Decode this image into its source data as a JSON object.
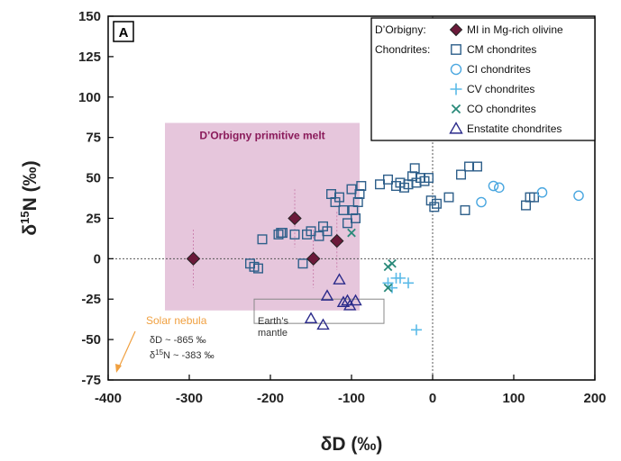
{
  "chart_data": {
    "type": "scatter",
    "panel_label": "A",
    "xlabel_parts": [
      "δD (‰)"
    ],
    "ylabel_parts": [
      "δ",
      "15",
      "N (‰)"
    ],
    "xlim": [
      -400,
      200
    ],
    "ylim": [
      -75,
      150
    ],
    "xticks": [
      -400,
      -300,
      -200,
      -100,
      0,
      100,
      200
    ],
    "yticks": [
      -75,
      -50,
      -25,
      0,
      25,
      50,
      75,
      100,
      125,
      150
    ],
    "grid": false,
    "legend": {
      "position": "top-right",
      "group_labels": [
        "D’Orbigny:",
        "Chondrites:"
      ]
    },
    "annotations": {
      "primitive_melt_label": "D’Orbigny primitive melt",
      "primitive_melt_region": {
        "x": [
          -330,
          -90
        ],
        "y": [
          -32,
          84
        ],
        "color": "#e6c6dc"
      },
      "mantle_label_line1": "Earth’s",
      "mantle_label_line2": "mantle",
      "mantle_region": {
        "x": [
          -220,
          -60
        ],
        "y": [
          -25,
          -40
        ]
      },
      "nebula_label": "Solar nebula",
      "nebula_dD": "δD ~ -865 ‰",
      "nebula_dN_prefix": "δ",
      "nebula_dN_sup": "15",
      "nebula_dN_rest": "N ~ -383 ‰"
    },
    "series": [
      {
        "name": "MI in Mg-rich olivine",
        "marker": "diamond",
        "color": "#6b1a3a",
        "points": [
          [
            -295,
            0
          ],
          [
            -170,
            25
          ],
          [
            -147,
            0
          ],
          [
            -118,
            11
          ]
        ]
      },
      {
        "name": "CM chondrites",
        "marker": "square",
        "color": "#2e5f8a",
        "points": [
          [
            -225,
            -3
          ],
          [
            -220,
            -5
          ],
          [
            -215,
            -6
          ],
          [
            -210,
            12
          ],
          [
            -190,
            15
          ],
          [
            -187,
            16
          ],
          [
            -185,
            16
          ],
          [
            -170,
            15
          ],
          [
            -160,
            -3
          ],
          [
            -155,
            15
          ],
          [
            -150,
            17
          ],
          [
            -140,
            14
          ],
          [
            -135,
            20
          ],
          [
            -130,
            17
          ],
          [
            -125,
            40
          ],
          [
            -120,
            35
          ],
          [
            -115,
            38
          ],
          [
            -110,
            30
          ],
          [
            -105,
            22
          ],
          [
            -100,
            43
          ],
          [
            -98,
            30
          ],
          [
            -95,
            25
          ],
          [
            -92,
            35
          ],
          [
            -90,
            40
          ],
          [
            -88,
            45
          ],
          [
            -65,
            46
          ],
          [
            -55,
            49
          ],
          [
            -45,
            45
          ],
          [
            -40,
            47
          ],
          [
            -35,
            44
          ],
          [
            -30,
            46
          ],
          [
            -25,
            51
          ],
          [
            -22,
            56
          ],
          [
            -20,
            47
          ],
          [
            -15,
            50
          ],
          [
            -10,
            48
          ],
          [
            -5,
            50
          ],
          [
            -2,
            36
          ],
          [
            2,
            32
          ],
          [
            5,
            34
          ],
          [
            20,
            38
          ],
          [
            35,
            52
          ],
          [
            40,
            30
          ],
          [
            45,
            57
          ],
          [
            55,
            57
          ],
          [
            115,
            33
          ],
          [
            120,
            38
          ],
          [
            125,
            38
          ]
        ]
      },
      {
        "name": "CI chondrites",
        "marker": "circle",
        "color": "#4aa7e0",
        "points": [
          [
            60,
            35
          ],
          [
            75,
            45
          ],
          [
            82,
            44
          ],
          [
            135,
            41
          ],
          [
            180,
            39
          ]
        ]
      },
      {
        "name": "CV chondrites",
        "marker": "plus",
        "color": "#5bbbe8",
        "points": [
          [
            -55,
            -15
          ],
          [
            -50,
            -18
          ],
          [
            -45,
            -12
          ],
          [
            -40,
            -12
          ],
          [
            -30,
            -15
          ],
          [
            -20,
            -44
          ]
        ]
      },
      {
        "name": "CO chondrites",
        "marker": "x",
        "color": "#2a8a7a",
        "points": [
          [
            -100,
            16
          ],
          [
            -55,
            -5
          ],
          [
            -50,
            -3
          ],
          [
            -55,
            -18
          ]
        ]
      },
      {
        "name": "Enstatite chondrites",
        "marker": "triangle",
        "color": "#2a2a8a",
        "points": [
          [
            -150,
            -37
          ],
          [
            -135,
            -41
          ],
          [
            -130,
            -23
          ],
          [
            -115,
            -13
          ],
          [
            -110,
            -27
          ],
          [
            -105,
            -26
          ],
          [
            -102,
            -29
          ],
          [
            -95,
            -26
          ]
        ]
      }
    ]
  }
}
